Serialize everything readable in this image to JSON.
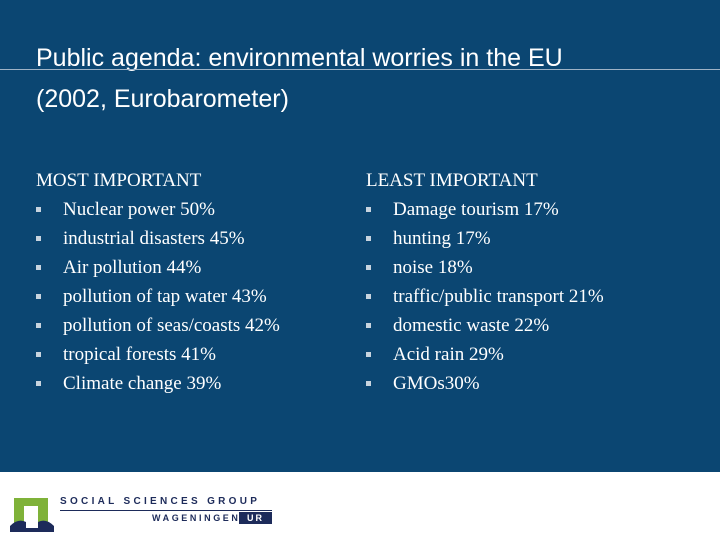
{
  "slide": {
    "title_line1": "Public agenda: environmental worries in the EU",
    "title_line2": "(2002, Eurobarometer)"
  },
  "most_important": {
    "heading": "MOST IMPORTANT",
    "items": [
      "Nuclear power 50%",
      "industrial disasters 45%",
      "Air pollution 44%",
      "pollution of tap water 43%",
      "pollution of seas/coasts 42%",
      "tropical forests 41%",
      "Climate change 39%"
    ]
  },
  "least_important": {
    "heading": "LEAST IMPORTANT",
    "items": [
      "Damage tourism 17%",
      "hunting 17%",
      "noise 18%",
      "traffic/public transport 21%",
      "domestic waste 22%",
      "Acid rain 29%",
      "GMOs30%"
    ]
  },
  "footer": {
    "org_name": "SOCIAL SCIENCES GROUP",
    "sub_name": "WAGENINGEN",
    "sub_badge": "UR",
    "logo_icon": "wageningen-logo-icon"
  },
  "colors": {
    "background": "#0b4672",
    "text": "#ffffff",
    "logo_green": "#7fb239",
    "logo_navy": "#1d2b5a"
  }
}
